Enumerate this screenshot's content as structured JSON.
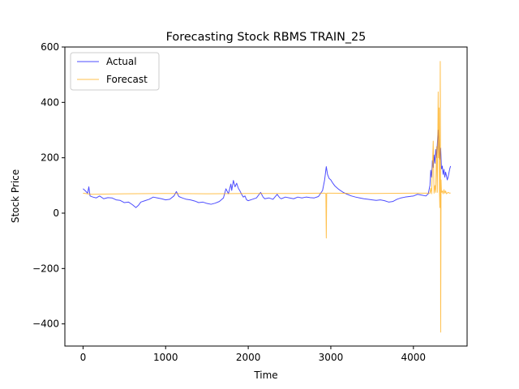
{
  "chart_data": {
    "type": "line",
    "title": "Forecasting Stock RBMS TRAIN_25",
    "xlabel": "Time",
    "ylabel": "Stock Price",
    "xlim": [
      -220,
      4650
    ],
    "ylim": [
      -480,
      600
    ],
    "xticks": [
      0,
      1000,
      2000,
      3000,
      4000
    ],
    "yticks": [
      -400,
      -200,
      0,
      200,
      400,
      600
    ],
    "grid": false,
    "legend_position": "top-left",
    "series": [
      {
        "name": "Actual",
        "color": "#0000ff",
        "points": [
          [
            0,
            88
          ],
          [
            30,
            80
          ],
          [
            55,
            72
          ],
          [
            70,
            95
          ],
          [
            85,
            62
          ],
          [
            120,
            58
          ],
          [
            160,
            55
          ],
          [
            200,
            62
          ],
          [
            250,
            52
          ],
          [
            300,
            56
          ],
          [
            350,
            55
          ],
          [
            400,
            48
          ],
          [
            450,
            46
          ],
          [
            500,
            38
          ],
          [
            550,
            40
          ],
          [
            600,
            30
          ],
          [
            640,
            20
          ],
          [
            670,
            28
          ],
          [
            700,
            40
          ],
          [
            750,
            45
          ],
          [
            800,
            50
          ],
          [
            850,
            58
          ],
          [
            900,
            55
          ],
          [
            950,
            52
          ],
          [
            1000,
            48
          ],
          [
            1050,
            50
          ],
          [
            1100,
            62
          ],
          [
            1130,
            78
          ],
          [
            1160,
            60
          ],
          [
            1200,
            55
          ],
          [
            1250,
            50
          ],
          [
            1300,
            48
          ],
          [
            1350,
            44
          ],
          [
            1400,
            38
          ],
          [
            1450,
            40
          ],
          [
            1500,
            35
          ],
          [
            1550,
            32
          ],
          [
            1600,
            36
          ],
          [
            1650,
            42
          ],
          [
            1700,
            55
          ],
          [
            1730,
            88
          ],
          [
            1760,
            70
          ],
          [
            1790,
            105
          ],
          [
            1800,
            82
          ],
          [
            1820,
            118
          ],
          [
            1840,
            95
          ],
          [
            1860,
            108
          ],
          [
            1880,
            90
          ],
          [
            1900,
            80
          ],
          [
            1920,
            68
          ],
          [
            1940,
            58
          ],
          [
            1960,
            62
          ],
          [
            1980,
            48
          ],
          [
            2000,
            45
          ],
          [
            2050,
            50
          ],
          [
            2100,
            55
          ],
          [
            2150,
            75
          ],
          [
            2180,
            58
          ],
          [
            2200,
            52
          ],
          [
            2250,
            55
          ],
          [
            2300,
            50
          ],
          [
            2350,
            68
          ],
          [
            2380,
            56
          ],
          [
            2400,
            52
          ],
          [
            2450,
            58
          ],
          [
            2500,
            55
          ],
          [
            2550,
            52
          ],
          [
            2600,
            58
          ],
          [
            2650,
            55
          ],
          [
            2700,
            58
          ],
          [
            2750,
            56
          ],
          [
            2800,
            55
          ],
          [
            2850,
            60
          ],
          [
            2900,
            82
          ],
          [
            2925,
            120
          ],
          [
            2945,
            168
          ],
          [
            2960,
            140
          ],
          [
            2980,
            125
          ],
          [
            3000,
            120
          ],
          [
            3020,
            110
          ],
          [
            3050,
            98
          ],
          [
            3080,
            90
          ],
          [
            3100,
            85
          ],
          [
            3150,
            75
          ],
          [
            3200,
            68
          ],
          [
            3250,
            62
          ],
          [
            3300,
            58
          ],
          [
            3350,
            55
          ],
          [
            3400,
            52
          ],
          [
            3450,
            50
          ],
          [
            3500,
            48
          ],
          [
            3550,
            46
          ],
          [
            3600,
            48
          ],
          [
            3650,
            45
          ],
          [
            3700,
            40
          ],
          [
            3750,
            42
          ],
          [
            3800,
            50
          ],
          [
            3850,
            55
          ],
          [
            3900,
            58
          ],
          [
            3950,
            60
          ],
          [
            4000,
            62
          ],
          [
            4050,
            68
          ],
          [
            4100,
            65
          ],
          [
            4150,
            62
          ],
          [
            4180,
            70
          ],
          [
            4200,
            100
          ],
          [
            4210,
            155
          ],
          [
            4220,
            130
          ],
          [
            4230,
            190
          ],
          [
            4240,
            165
          ],
          [
            4250,
            210
          ],
          [
            4260,
            180
          ],
          [
            4270,
            230
          ],
          [
            4280,
            200
          ],
          [
            4290,
            250
          ],
          [
            4300,
            300
          ],
          [
            4310,
            240
          ],
          [
            4320,
            195
          ],
          [
            4330,
            235
          ],
          [
            4340,
            160
          ],
          [
            4350,
            170
          ],
          [
            4360,
            140
          ],
          [
            4370,
            158
          ],
          [
            4380,
            130
          ],
          [
            4390,
            148
          ],
          [
            4400,
            135
          ],
          [
            4410,
            120
          ],
          [
            4420,
            130
          ],
          [
            4430,
            145
          ],
          [
            4440,
            160
          ],
          [
            4450,
            170
          ]
        ]
      },
      {
        "name": "Forecast",
        "color": "#ffa500",
        "points": [
          [
            0,
            72
          ],
          [
            100,
            68
          ],
          [
            500,
            70
          ],
          [
            1000,
            71
          ],
          [
            1500,
            70
          ],
          [
            2000,
            71
          ],
          [
            2500,
            71
          ],
          [
            2900,
            72
          ],
          [
            2930,
            72
          ],
          [
            2940,
            70
          ],
          [
            2945,
            -90
          ],
          [
            2950,
            72
          ],
          [
            3000,
            72
          ],
          [
            3500,
            71
          ],
          [
            4000,
            72
          ],
          [
            4180,
            72
          ],
          [
            4200,
            72
          ],
          [
            4210,
            90
          ],
          [
            4220,
            70
          ],
          [
            4240,
            260
          ],
          [
            4250,
            72
          ],
          [
            4260,
            100
          ],
          [
            4270,
            75
          ],
          [
            4280,
            240
          ],
          [
            4290,
            75
          ],
          [
            4300,
            438
          ],
          [
            4305,
            200
          ],
          [
            4310,
            380
          ],
          [
            4315,
            80
          ],
          [
            4320,
            20
          ],
          [
            4325,
            548
          ],
          [
            4328,
            200
          ],
          [
            4330,
            -430
          ],
          [
            4335,
            120
          ],
          [
            4340,
            75
          ],
          [
            4350,
            80
          ],
          [
            4360,
            70
          ],
          [
            4370,
            85
          ],
          [
            4380,
            72
          ],
          [
            4390,
            80
          ],
          [
            4400,
            70
          ],
          [
            4420,
            75
          ],
          [
            4440,
            72
          ],
          [
            4450,
            73
          ]
        ]
      }
    ]
  }
}
